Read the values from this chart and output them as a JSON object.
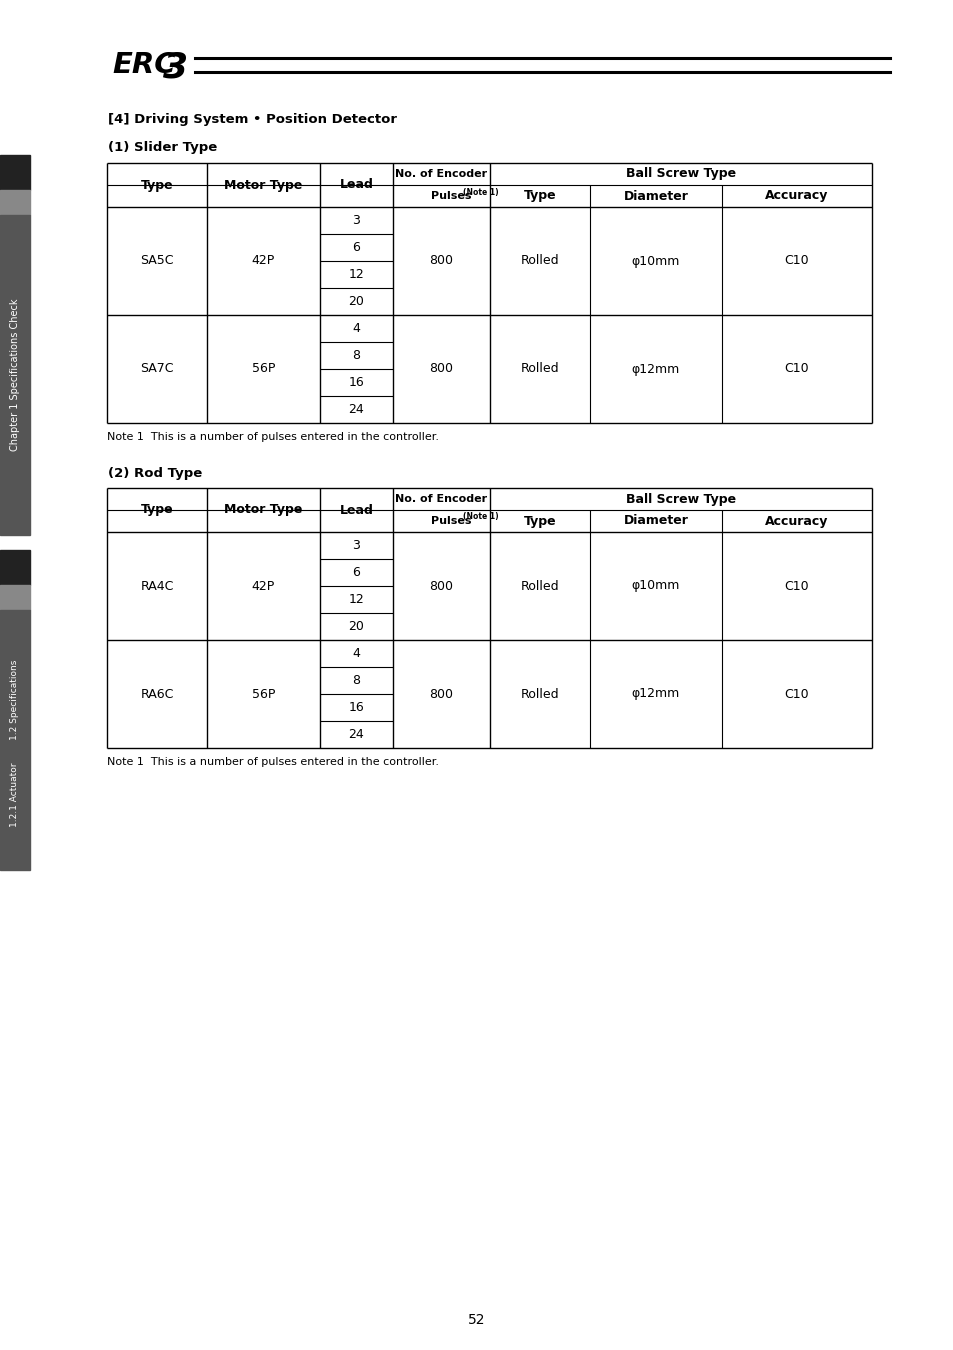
{
  "title_text": "[4] Driving System • Position Detector",
  "section1_title": "(1) Slider Type",
  "section2_title": "(2) Rod Type",
  "note_text": "Note 1  This is a number of pulses entered in the controller.",
  "page_number": "52",
  "table1_rows": [
    [
      "SA5C",
      "42P",
      "3",
      "800",
      "Rolled",
      "φ10mm",
      "C10"
    ],
    [
      "SA5C",
      "42P",
      "6",
      "800",
      "Rolled",
      "φ10mm",
      "C10"
    ],
    [
      "SA5C",
      "42P",
      "12",
      "800",
      "Rolled",
      "φ10mm",
      "C10"
    ],
    [
      "SA5C",
      "42P",
      "20",
      "800",
      "Rolled",
      "φ10mm",
      "C10"
    ],
    [
      "SA7C",
      "56P",
      "4",
      "800",
      "Rolled",
      "φ12mm",
      "C10"
    ],
    [
      "SA7C",
      "56P",
      "8",
      "800",
      "Rolled",
      "φ12mm",
      "C10"
    ],
    [
      "SA7C",
      "56P",
      "16",
      "800",
      "Rolled",
      "φ12mm",
      "C10"
    ],
    [
      "SA7C",
      "56P",
      "24",
      "800",
      "Rolled",
      "φ12mm",
      "C10"
    ]
  ],
  "table2_rows": [
    [
      "RA4C",
      "42P",
      "3",
      "800",
      "Rolled",
      "φ10mm",
      "C10"
    ],
    [
      "RA4C",
      "42P",
      "6",
      "800",
      "Rolled",
      "φ10mm",
      "C10"
    ],
    [
      "RA4C",
      "42P",
      "12",
      "800",
      "Rolled",
      "φ10mm",
      "C10"
    ],
    [
      "RA4C",
      "42P",
      "20",
      "800",
      "Rolled",
      "φ10mm",
      "C10"
    ],
    [
      "RA6C",
      "56P",
      "4",
      "800",
      "Rolled",
      "φ12mm",
      "C10"
    ],
    [
      "RA6C",
      "56P",
      "8",
      "800",
      "Rolled",
      "φ12mm",
      "C10"
    ],
    [
      "RA6C",
      "56P",
      "16",
      "800",
      "Rolled",
      "φ12mm",
      "C10"
    ],
    [
      "RA6C",
      "56P",
      "24",
      "800",
      "Rolled",
      "φ12mm",
      "C10"
    ]
  ]
}
